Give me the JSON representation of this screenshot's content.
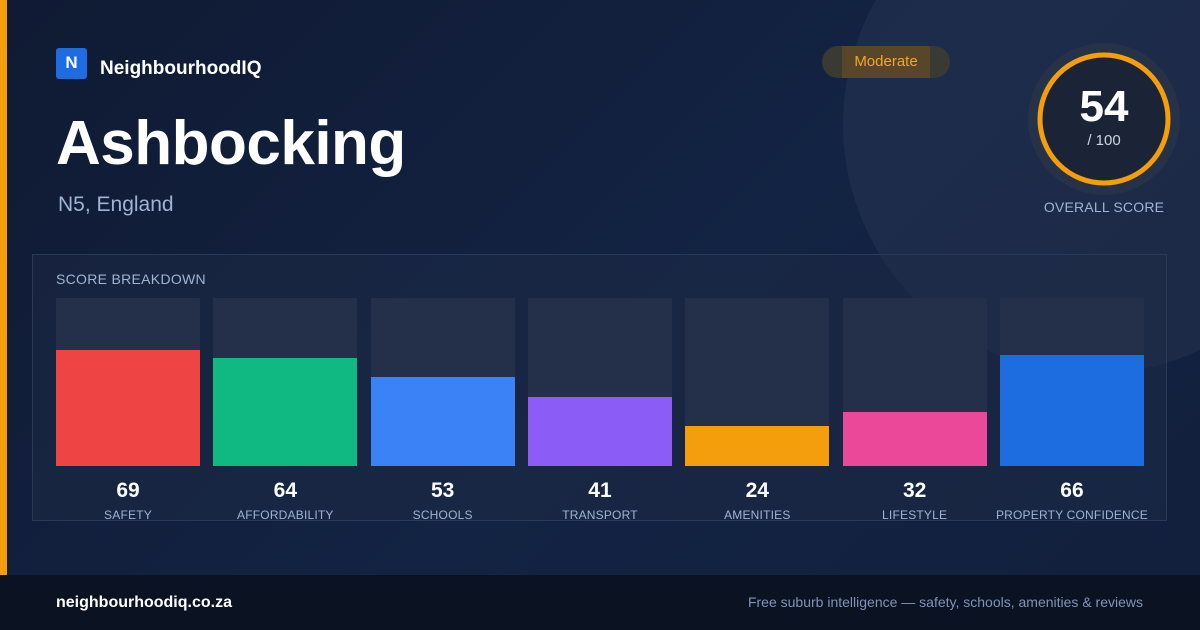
{
  "brand": {
    "logo_letter": "N",
    "name": "NeighbourhoodIQ"
  },
  "suburb": {
    "name": "Ashbocking",
    "location": "N5, England"
  },
  "rating": {
    "label": "Moderate",
    "color": "#f5a623"
  },
  "overall": {
    "score": "54",
    "max_label": "/ 100",
    "caption": "OVERALL SCORE",
    "value": 54,
    "max": 100,
    "ring_color": "#f59e0b"
  },
  "breakdown": {
    "title": "SCORE BREAKDOWN",
    "categories": [
      {
        "label": "SAFETY",
        "value": 69,
        "color": "#ef4444"
      },
      {
        "label": "AFFORDABILITY",
        "value": 64,
        "color": "#10b981"
      },
      {
        "label": "SCHOOLS",
        "value": 53,
        "color": "#3b82f6"
      },
      {
        "label": "TRANSPORT",
        "value": 41,
        "color": "#8b5cf6"
      },
      {
        "label": "AMENITIES",
        "value": 24,
        "color": "#f59e0b"
      },
      {
        "label": "LIFESTYLE",
        "value": 32,
        "color": "#ec4899"
      },
      {
        "label": "PROPERTY CONFIDENCE",
        "value": 66,
        "color": "#1d6ce0"
      }
    ]
  },
  "footer": {
    "domain": "neighbourhoodiq.co.za",
    "tagline": "Free suburb intelligence — safety, schools, amenities & reviews"
  }
}
